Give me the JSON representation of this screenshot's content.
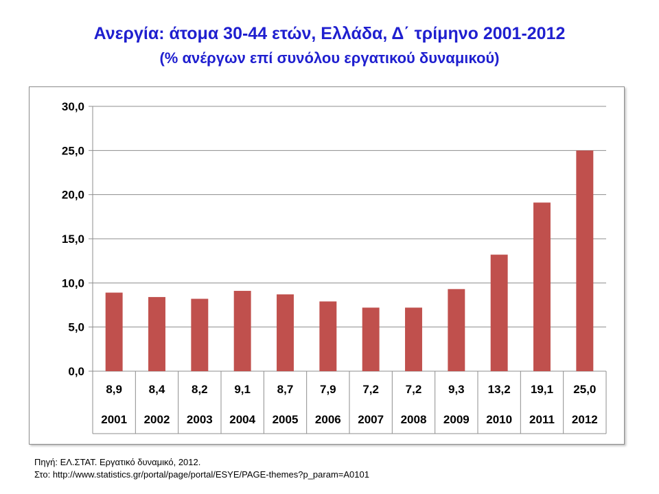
{
  "title": "Ανεργία: άτομα 30-44 ετών, Ελλάδα, Δ΄ τρίμηνο 2001-2012",
  "subtitle": "(% ανέργων επί συνόλου εργατικού δυναμικού)",
  "source_line_1": "Πηγή: ΕΛ.ΣΤΑΤ. Εργατικό δυναμικό, 2012.",
  "source_line_2": "Στο: http://www.statistics.gr/portal/page/portal/ESYE/PAGE-themes?p_param=A0101",
  "colors": {
    "title": "#1f1fcf",
    "bar": "#c0504d",
    "grid": "#8c8c8c"
  },
  "chart_data": {
    "type": "bar",
    "categories": [
      "2001",
      "2002",
      "2003",
      "2004",
      "2005",
      "2006",
      "2007",
      "2008",
      "2009",
      "2010",
      "2011",
      "2012"
    ],
    "values": [
      8.9,
      8.4,
      8.2,
      9.1,
      8.7,
      7.9,
      7.2,
      7.2,
      9.3,
      13.2,
      19.1,
      25.0
    ],
    "value_labels": [
      "8,9",
      "8,4",
      "8,2",
      "9,1",
      "8,7",
      "7,9",
      "7,2",
      "7,2",
      "9,3",
      "13,2",
      "19,1",
      "25,0"
    ],
    "y_ticks": [
      "0,0",
      "5,0",
      "10,0",
      "15,0",
      "20,0",
      "25,0",
      "30,0"
    ],
    "ylim": [
      0,
      30
    ],
    "grid": true,
    "data_table_below": true
  }
}
